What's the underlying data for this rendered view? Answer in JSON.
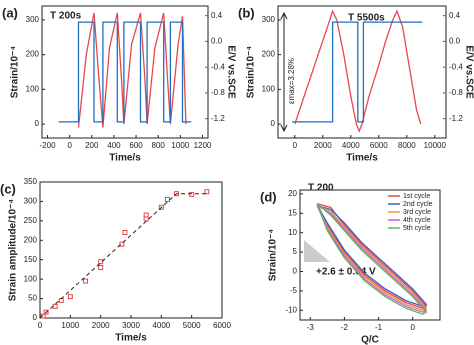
{
  "chart_data": [
    {
      "type": "line",
      "panel_label": "(a)",
      "note": "T 200s",
      "x_label": "Time/s",
      "y_label": "Strain/10⁻⁴",
      "y2_label": "E/V vs.SCE",
      "xlim": [
        -250,
        1250
      ],
      "xticks": [
        -200,
        0,
        200,
        400,
        600,
        800,
        1000,
        1200
      ],
      "ylim": [
        -40,
        340
      ],
      "yticks": [
        0,
        100,
        200,
        300
      ],
      "y2lim": [
        -1.5,
        0.55
      ],
      "y2ticks": [
        0.4,
        {
          "value": 0,
          "label": "0.0"
        },
        -0.4,
        -0.8,
        -1.2
      ],
      "series": [
        {
          "color": "#e8474f",
          "x": [
            80,
            150,
            220,
            260,
            300,
            360,
            430,
            470,
            490,
            560,
            640,
            680,
            700,
            770,
            850,
            880,
            910,
            980,
            1020,
            1050
          ],
          "values": [
            -10,
            200,
            320,
            150,
            -10,
            220,
            320,
            120,
            0,
            230,
            320,
            130,
            0,
            220,
            320,
            150,
            0,
            230,
            310,
            0
          ]
        },
        {
          "color": "#1f6fbf",
          "axis": "y2",
          "x": [
            -100,
            80,
            80,
            220,
            220,
            300,
            300,
            430,
            430,
            490,
            490,
            640,
            640,
            700,
            700,
            850,
            850,
            910,
            910,
            1020,
            1020,
            1100
          ],
          "values": [
            -1.25,
            -1.25,
            0.3,
            0.3,
            -1.25,
            -1.25,
            0.3,
            0.3,
            -1.25,
            -1.25,
            0.3,
            0.3,
            -1.25,
            -1.25,
            0.3,
            0.3,
            -1.25,
            -1.25,
            0.3,
            0.3,
            -1.25,
            -1.25
          ]
        }
      ]
    },
    {
      "type": "line",
      "panel_label": "(b)",
      "note": "T 5500s",
      "side_note": "εmax=3.28%",
      "x_label": "Time/s",
      "y_label": "Strain/10⁻⁴",
      "y2_label": "E/V vs.SCE",
      "xlim": [
        -1200,
        10800
      ],
      "xticks": [
        0,
        2000,
        4000,
        6000,
        8000,
        10000
      ],
      "ylim": [
        -40,
        340
      ],
      "yticks": [
        0,
        100,
        200,
        300
      ],
      "y2lim": [
        -1.5,
        0.55
      ],
      "y2ticks": [
        0.4,
        {
          "value": 0,
          "label": "0.0"
        },
        -0.4,
        -0.8,
        -1.2
      ],
      "series": [
        {
          "color": "#e8474f",
          "x": [
            0,
            500,
            1000,
            1500,
            2000,
            2500,
            2700,
            3000,
            3500,
            4000,
            4400,
            4600,
            4800,
            5300,
            6000,
            6500,
            7000,
            7300,
            7700,
            8200,
            8700,
            9000
          ],
          "values": [
            0,
            60,
            120,
            180,
            240,
            300,
            325,
            300,
            200,
            80,
            0,
            -20,
            0,
            80,
            170,
            240,
            300,
            325,
            280,
            160,
            40,
            0
          ]
        },
        {
          "color": "#1f6fbf",
          "axis": "y2",
          "x": [
            -200,
            2700,
            2700,
            4500,
            4500,
            4900,
            4900,
            9100
          ],
          "values": [
            -1.25,
            -1.25,
            0.3,
            0.3,
            -1.25,
            -1.25,
            0.3,
            0.3
          ]
        }
      ]
    },
    {
      "type": "scatter",
      "panel_label": "(c)",
      "x_label": "Time/s",
      "y_label": "Strain amplitude/10⁻⁴",
      "xlim": [
        0,
        6000
      ],
      "xticks": [
        0,
        1000,
        2000,
        3000,
        4000,
        5000,
        6000
      ],
      "ylim": [
        0,
        350
      ],
      "yticks": [
        0,
        50,
        100,
        150,
        200,
        250,
        300,
        350
      ],
      "series": [
        {
          "color": "#e8474f",
          "marker": true,
          "x": [
            100,
            200,
            500,
            700,
            1000,
            1500,
            2000,
            2000,
            2700,
            2800,
            3500,
            3500,
            4000,
            4200,
            4500,
            5000,
            5500
          ],
          "values": [
            5,
            15,
            30,
            45,
            55,
            95,
            130,
            145,
            190,
            220,
            255,
            265,
            285,
            305,
            320,
            318,
            325
          ]
        },
        {
          "color": "#222222",
          "dash": true,
          "x": [
            0,
            4500,
            5500
          ],
          "values": [
            0,
            320,
            320
          ]
        }
      ]
    },
    {
      "type": "line",
      "panel_label": "(d)",
      "note": "T 200",
      "fit_note": "+2.6 ± 0.04 V",
      "x_label": "Q/C",
      "y_label": "Strain/10⁻⁴",
      "xlim": [
        -3.3,
        0.8
      ],
      "xticks": [
        -3,
        -2,
        -1,
        0
      ],
      "ylim": [
        -12.5,
        21
      ],
      "yticks": [
        -10,
        -5,
        0,
        5,
        10,
        15,
        20
      ],
      "x": [
        -2.8,
        -2.4,
        -2,
        -1.5,
        -1,
        -0.5,
        0,
        0.4,
        0.3,
        -0.2,
        -0.8,
        -1.4,
        -2,
        -2.5,
        -2.8
      ],
      "series": [
        {
          "name": "1st cycle",
          "color": "#e8474f",
          "values": [
            17.5,
            16.5,
            12,
            7,
            3,
            -1,
            -5,
            -9,
            -9.5,
            -8,
            -5,
            -1,
            5,
            12,
            17.5
          ]
        },
        {
          "name": "2nd cycle",
          "color": "#3a5fcd",
          "values": [
            17,
            16,
            12.5,
            7.5,
            3.5,
            -0.5,
            -4.5,
            -8.5,
            -9,
            -7.5,
            -4.5,
            -0.5,
            5.5,
            12.5,
            17
          ]
        },
        {
          "name": "3rd cycle",
          "color": "#e89a3c",
          "values": [
            17,
            15.5,
            11.5,
            6.5,
            2.5,
            -1.5,
            -5.5,
            -9.5,
            -10,
            -8.5,
            -5.5,
            -1.5,
            4.5,
            11.5,
            17
          ]
        },
        {
          "name": "4th cycle",
          "color": "#d05ad0",
          "values": [
            17,
            15,
            11,
            6,
            2,
            -2,
            -6,
            -10,
            -10.5,
            -9,
            -6,
            -2,
            4,
            11,
            17
          ]
        },
        {
          "name": "5th cycle",
          "color": "#5cb85c",
          "values": [
            17.5,
            14.5,
            10.5,
            5.5,
            1.5,
            -2.5,
            -6.5,
            -10.5,
            -11,
            -9.5,
            -6.5,
            -2.5,
            3.5,
            10.5,
            17.5
          ]
        }
      ]
    }
  ]
}
